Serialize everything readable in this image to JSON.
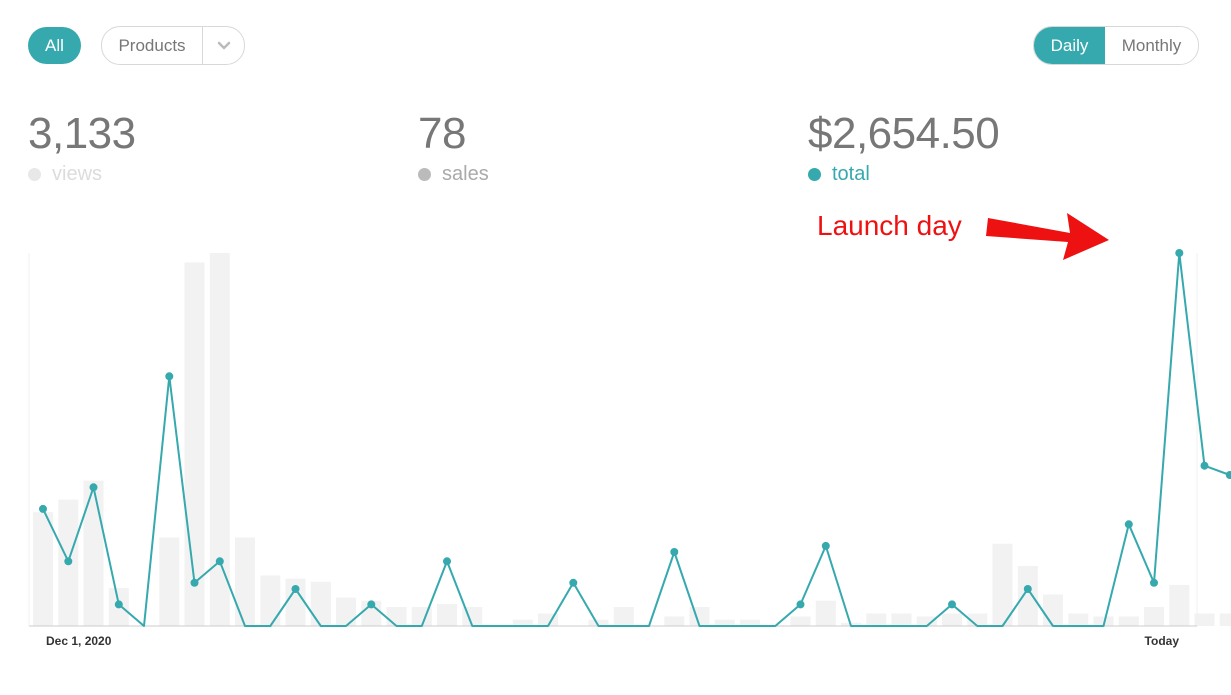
{
  "filters": {
    "all_label": "All",
    "products_label": "Products"
  },
  "period_toggle": {
    "daily_label": "Daily",
    "monthly_label": "Monthly",
    "selected": "Daily"
  },
  "stats": {
    "views": {
      "value": "3,133",
      "label": "views"
    },
    "sales": {
      "value": "78",
      "label": "sales"
    },
    "total": {
      "value": "$2,654.50",
      "label": "total"
    }
  },
  "colors": {
    "accent": "#36a9ae",
    "bars": "#f2f2f2",
    "annotation": "#ee1111"
  },
  "annotation": {
    "text": "Launch day"
  },
  "chart_data": {
    "type": "line",
    "x_start_label": "Dec 1, 2020",
    "x_end_label": "Today",
    "grid": false,
    "series": [
      {
        "values": [
          38,
          21,
          45,
          7,
          0,
          81,
          14,
          21,
          0,
          0,
          12,
          0,
          0,
          7,
          0,
          0,
          21,
          0,
          0,
          0,
          0,
          14,
          0,
          0,
          0,
          24,
          0,
          0,
          0,
          0,
          7,
          26,
          0,
          0,
          0,
          0,
          7,
          0,
          0,
          12,
          0,
          0,
          0,
          33,
          14,
          121,
          52,
          49
        ]
      },
      {
        "values": [
          36,
          40,
          46,
          12,
          0,
          28,
          115,
          118,
          28,
          16,
          15,
          14,
          9,
          8,
          6,
          6,
          7,
          6,
          0,
          2,
          4,
          0,
          2,
          6,
          0,
          3,
          6,
          2,
          2,
          0,
          3,
          8,
          1,
          4,
          4,
          3,
          4,
          4,
          26,
          19,
          10,
          4,
          3,
          3,
          6,
          13,
          4,
          4
        ]
      }
    ]
  }
}
